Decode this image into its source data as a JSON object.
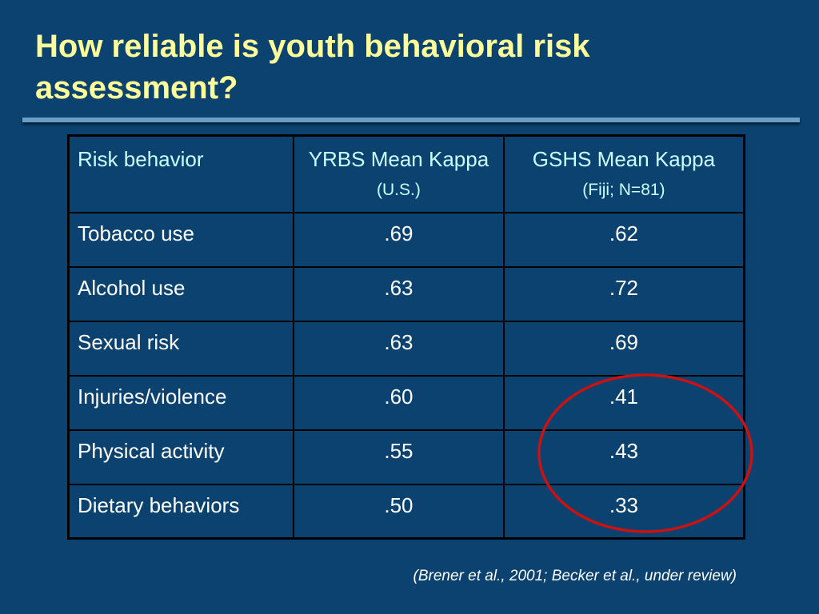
{
  "slide": {
    "title": "How reliable is youth behavioral risk assessment?",
    "citation": "(Brener et al., 2001; Becker et al., under review)"
  },
  "table": {
    "headers": {
      "col1": "Risk behavior",
      "col2_main": "YRBS Mean Kappa",
      "col2_sub": "(U.S.)",
      "col3_main": "GSHS Mean Kappa",
      "col3_sub": "(Fiji; N=81)"
    },
    "rows": [
      {
        "behavior": "Tobacco use",
        "yrbs": ".69",
        "gshs": ".62"
      },
      {
        "behavior": "Alcohol use",
        "yrbs": ".63",
        "gshs": ".72"
      },
      {
        "behavior": "Sexual risk",
        "yrbs": ".63",
        "gshs": ".69"
      },
      {
        "behavior": "Injuries/violence",
        "yrbs": ".60",
        "gshs": ".41"
      },
      {
        "behavior": "Physical activity",
        "yrbs": ".55",
        "gshs": ".43"
      },
      {
        "behavior": "Dietary behaviors",
        "yrbs": ".50",
        "gshs": ".33"
      }
    ]
  },
  "colors": {
    "background": "#0b4270",
    "title": "#ffff99",
    "header_text": "#ccffff",
    "highlight_circle": "#cc1111"
  }
}
